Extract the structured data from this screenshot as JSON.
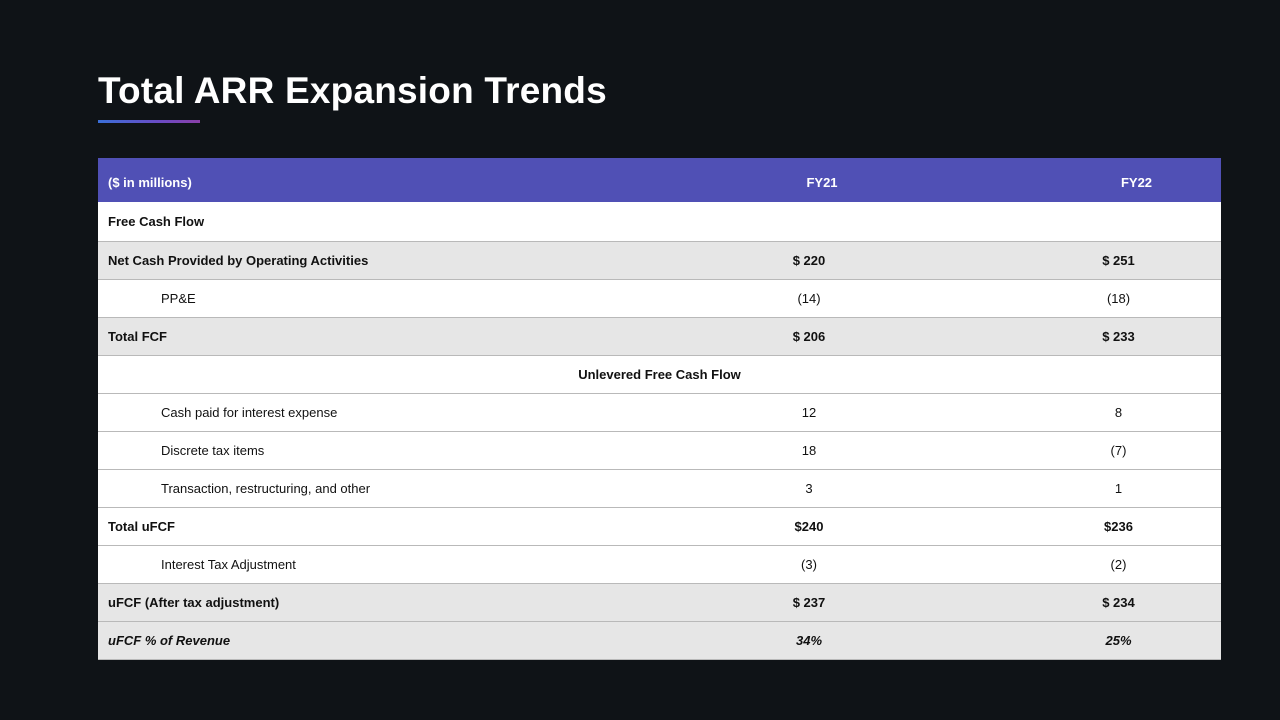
{
  "slide": {
    "title": "Total ARR Expansion Trends",
    "accent_gradient": [
      "#3a6fd8",
      "#8a3fa8"
    ],
    "header_color": "#5050b5"
  },
  "table": {
    "header": {
      "label": "($ in millions)",
      "fy21": "FY21",
      "fy22": "FY22"
    },
    "rows": [
      {
        "label": "Free Cash Flow",
        "fy21": "",
        "fy22": ""
      },
      {
        "label": "Net Cash Provided by Operating Activities",
        "fy21": "$ 220",
        "fy22": "$ 251"
      },
      {
        "label": "PP&E",
        "fy21": "(14)",
        "fy22": "(18)"
      },
      {
        "label": "Total FCF",
        "fy21": "$ 206",
        "fy22": "$ 233"
      },
      {
        "label": "Unlevered Free Cash Flow"
      },
      {
        "label": "Cash paid for interest  expense",
        "fy21": "12",
        "fy22": "8"
      },
      {
        "label": "Discrete tax items",
        "fy21": "18",
        "fy22": "(7)"
      },
      {
        "label": "Transaction, restructuring,  and other",
        "fy21": "3",
        "fy22": "1"
      },
      {
        "label": "Total uFCF",
        "fy21": "$240",
        "fy22": "$236"
      },
      {
        "label": "Interest  Tax Adjustment",
        "fy21": "(3)",
        "fy22": "(2)"
      },
      {
        "label": "uFCF (After tax adjustment)",
        "fy21": "$ 237",
        "fy22": "$ 234"
      },
      {
        "label": "uFCF % of Revenue",
        "fy21": "34%",
        "fy22": "25%"
      }
    ]
  }
}
